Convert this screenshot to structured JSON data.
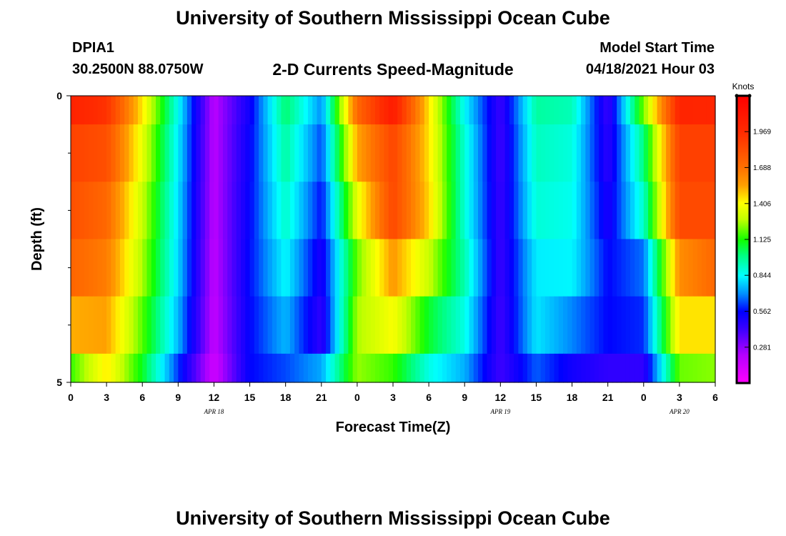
{
  "header": {
    "title": "University of Southern Mississippi Ocean Cube",
    "station_id": "DPIA1",
    "station_coords": "30.2500N  88.0750W",
    "subtitle": "2-D Currents Speed-Magnitude",
    "model_start_label": "Model Start Time",
    "model_start_value": "04/18/2021 Hour 03"
  },
  "footer": {
    "title": "University of Southern Mississippi Ocean Cube"
  },
  "chart_data": {
    "type": "heatmap",
    "title": "2-D Currents Speed-Magnitude",
    "xlabel": "Forecast Time(Z)",
    "ylabel": "Depth (ft)",
    "x_unit": "hour (Z)",
    "x": [
      "2021-04-18T00Z",
      "2021-04-18T03Z",
      "2021-04-18T06Z",
      "2021-04-18T09Z",
      "2021-04-18T12Z",
      "2021-04-18T15Z",
      "2021-04-18T18Z",
      "2021-04-18T21Z",
      "2021-04-19T00Z",
      "2021-04-19T03Z",
      "2021-04-19T06Z",
      "2021-04-19T09Z",
      "2021-04-19T12Z",
      "2021-04-19T15Z",
      "2021-04-19T18Z",
      "2021-04-19T21Z",
      "2021-04-20T00Z",
      "2021-04-20T03Z",
      "2021-04-20T06Z"
    ],
    "xlim": [
      "2021-04-18T00Z",
      "2021-04-20T06Z"
    ],
    "x_tick_labels": [
      "0",
      "3",
      "6",
      "9",
      "12",
      "15",
      "18",
      "21",
      "0",
      "3",
      "6",
      "9",
      "12",
      "15",
      "18",
      "21",
      "0",
      "3",
      "6"
    ],
    "day_labels": [
      {
        "at": "2021-04-18T12Z",
        "text": "APR  18"
      },
      {
        "at": "2021-04-19T12Z",
        "text": "APR  19"
      },
      {
        "at": "2021-04-20T03Z",
        "text": "APR  20"
      }
    ],
    "y": [
      0,
      1,
      2,
      3,
      4,
      5
    ],
    "ylim": [
      0,
      5
    ],
    "y_inverted": true,
    "y_tick_labels": [
      {
        "value": 0,
        "text": "0"
      },
      {
        "value": 5,
        "text": "5"
      }
    ],
    "y_minor_ticks": [
      1,
      2,
      3,
      4
    ],
    "layer_bounds": [
      [
        0,
        0.5
      ],
      [
        0.5,
        1.5
      ],
      [
        1.5,
        2.5
      ],
      [
        2.5,
        3.5
      ],
      [
        3.5,
        4.5
      ],
      [
        4.5,
        5
      ]
    ],
    "values": [
      [
        2.02,
        1.94,
        1.44,
        0.85,
        0.2,
        0.53,
        1.02,
        0.7,
        1.72,
        2.07,
        1.45,
        0.84,
        0.43,
        0.96,
        0.93,
        0.43,
        1.21,
        2.01,
        2.0
      ],
      [
        1.87,
        1.82,
        1.36,
        0.82,
        0.2,
        0.55,
        0.96,
        0.63,
        1.54,
        1.86,
        1.45,
        0.89,
        0.42,
        0.92,
        0.88,
        0.46,
        1.0,
        1.88,
        1.88
      ],
      [
        1.82,
        1.72,
        1.3,
        0.8,
        0.2,
        0.56,
        0.91,
        0.57,
        1.36,
        1.85,
        1.47,
        0.89,
        0.43,
        0.89,
        0.86,
        0.5,
        0.91,
        1.84,
        1.84
      ],
      [
        1.73,
        1.65,
        1.26,
        0.79,
        0.19,
        0.57,
        0.84,
        0.5,
        1.2,
        1.57,
        1.3,
        0.94,
        0.43,
        0.82,
        0.83,
        0.56,
        0.67,
        1.6,
        1.72
      ],
      [
        1.53,
        1.55,
        1.18,
        0.75,
        0.18,
        0.56,
        0.75,
        0.45,
        1.26,
        1.4,
        1.08,
        0.87,
        0.42,
        0.81,
        0.69,
        0.56,
        0.6,
        1.45,
        1.45
      ],
      [
        1.15,
        1.44,
        1.09,
        0.61,
        0.14,
        0.56,
        0.63,
        0.73,
        1.24,
        1.15,
        0.87,
        0.74,
        0.42,
        0.65,
        0.52,
        0.45,
        0.45,
        1.2,
        1.23
      ]
    ],
    "colorbar": {
      "title": "Knots",
      "min": 0.0,
      "max": 2.25,
      "tick_values": [
        1.969,
        1.688,
        1.406,
        1.125,
        0.844,
        0.562,
        0.281
      ],
      "tick_labels": [
        "1.969",
        "1.688",
        "1.406",
        "1.125",
        "0.844",
        "0.562",
        "0.281"
      ],
      "color_stops": [
        {
          "v": 0.0,
          "c": "#ff00ff"
        },
        {
          "v": 0.22,
          "c": "#b400ff"
        },
        {
          "v": 0.42,
          "c": "#3c00ff"
        },
        {
          "v": 0.56,
          "c": "#0000ff"
        },
        {
          "v": 0.7,
          "c": "#0090ff"
        },
        {
          "v": 0.84,
          "c": "#00ffff"
        },
        {
          "v": 1.0,
          "c": "#00ff80"
        },
        {
          "v": 1.12,
          "c": "#10ff00"
        },
        {
          "v": 1.28,
          "c": "#c0ff00"
        },
        {
          "v": 1.41,
          "c": "#ffff00"
        },
        {
          "v": 1.55,
          "c": "#ff9f00"
        },
        {
          "v": 1.69,
          "c": "#ff6f00"
        },
        {
          "v": 1.97,
          "c": "#ff2a00"
        },
        {
          "v": 2.25,
          "c": "#ff0000"
        }
      ]
    }
  }
}
